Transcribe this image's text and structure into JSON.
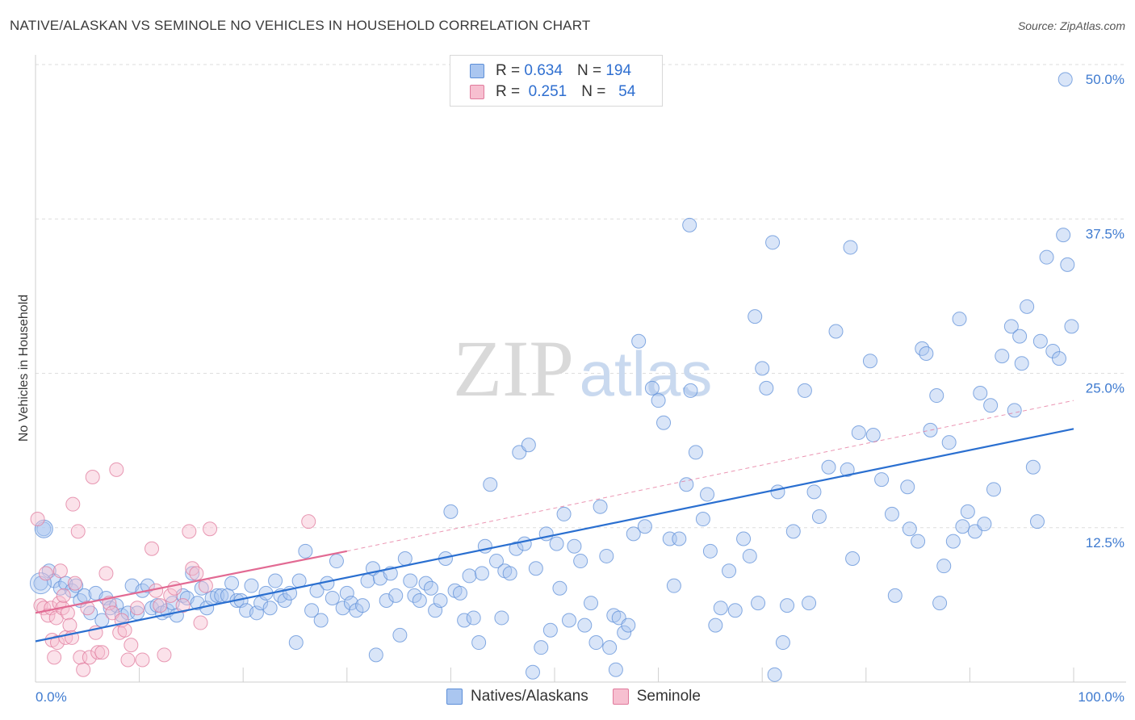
{
  "title": "NATIVE/ALASKAN VS SEMINOLE NO VEHICLES IN HOUSEHOLD CORRELATION CHART",
  "source": "Source: ZipAtlas.com",
  "watermark": {
    "zip": "ZIP",
    "atlas": "atlas"
  },
  "legend": {
    "rows": [
      {
        "r_label": "R =",
        "r_value": "0.634",
        "n_label": "N =",
        "n_value": "194",
        "color": "#aac6f0",
        "border": "#5d8fd8"
      },
      {
        "r_label": "R =",
        "r_value": "0.251",
        "n_label": "N =",
        "n_value": "54",
        "color": "#f7bfd0",
        "border": "#e07a9c"
      }
    ]
  },
  "bottom_legend": {
    "items": [
      {
        "label": "Natives/Alaskans",
        "color": "#aac6f0",
        "border": "#5d8fd8"
      },
      {
        "label": "Seminole",
        "color": "#f7bfd0",
        "border": "#e07a9c"
      }
    ]
  },
  "chart_data": {
    "type": "scatter",
    "title": "NATIVE/ALASKAN VS SEMINOLE NO VEHICLES IN HOUSEHOLD CORRELATION CHART",
    "xlabel": "",
    "ylabel": "No Vehicles in Household",
    "xlim": [
      0,
      100
    ],
    "ylim": [
      0,
      50
    ],
    "x_tick_labels": [
      "0.0%",
      "100.0%"
    ],
    "y_tick_labels": [
      "12.5%",
      "25.0%",
      "37.5%",
      "50.0%"
    ],
    "y_ticks": [
      12.5,
      25.0,
      37.5,
      50.0
    ],
    "grid": true,
    "legend_position": "top-center",
    "colors": {
      "natives": "#5d8fd8",
      "natives_fill": "#aac6f0",
      "seminole": "#e07a9c",
      "seminole_fill": "#f7bfd0",
      "natives_line": "#2a6fd0",
      "seminole_line": "#e26a93"
    },
    "series": [
      {
        "name": "Natives/Alaskans",
        "trend": {
          "x": [
            0,
            100
          ],
          "y": [
            3.3,
            20.5
          ]
        },
        "points": [
          [
            0.5,
            8.0
          ],
          [
            0.8,
            12.4
          ],
          [
            1.3,
            9.0
          ],
          [
            1.8,
            8.2
          ],
          [
            2.4,
            7.6
          ],
          [
            2.9,
            8.0
          ],
          [
            3.5,
            7.4
          ],
          [
            3.9,
            7.8
          ],
          [
            4.3,
            6.6
          ],
          [
            4.7,
            7.0
          ],
          [
            5.3,
            5.6
          ],
          [
            5.8,
            7.2
          ],
          [
            6.4,
            5.0
          ],
          [
            6.8,
            6.8
          ],
          [
            7.2,
            6.0
          ],
          [
            7.8,
            6.2
          ],
          [
            8.3,
            5.4
          ],
          [
            8.9,
            5.6
          ],
          [
            9.3,
            7.8
          ],
          [
            9.8,
            5.6
          ],
          [
            10.3,
            7.4
          ],
          [
            10.8,
            7.8
          ],
          [
            11.2,
            6.0
          ],
          [
            11.7,
            6.2
          ],
          [
            12.2,
            5.6
          ],
          [
            12.7,
            5.8
          ],
          [
            13.2,
            6.4
          ],
          [
            13.6,
            5.4
          ],
          [
            14.2,
            7.0
          ],
          [
            14.6,
            6.8
          ],
          [
            15.1,
            8.8
          ],
          [
            15.6,
            6.4
          ],
          [
            16.0,
            7.6
          ],
          [
            16.5,
            6.0
          ],
          [
            17.0,
            6.8
          ],
          [
            17.5,
            7.0
          ],
          [
            17.9,
            7.0
          ],
          [
            18.5,
            7.0
          ],
          [
            18.9,
            8.0
          ],
          [
            19.4,
            6.6
          ],
          [
            19.8,
            6.6
          ],
          [
            20.3,
            5.8
          ],
          [
            20.8,
            7.8
          ],
          [
            21.3,
            5.6
          ],
          [
            21.7,
            6.4
          ],
          [
            22.2,
            7.2
          ],
          [
            22.6,
            6.0
          ],
          [
            23.1,
            8.2
          ],
          [
            23.6,
            7.0
          ],
          [
            24.0,
            6.6
          ],
          [
            24.5,
            7.2
          ],
          [
            25.1,
            3.2
          ],
          [
            25.4,
            8.2
          ],
          [
            26.0,
            10.6
          ],
          [
            26.6,
            5.8
          ],
          [
            27.1,
            7.4
          ],
          [
            27.5,
            5.0
          ],
          [
            28.1,
            8.0
          ],
          [
            28.6,
            6.8
          ],
          [
            29.0,
            9.8
          ],
          [
            29.6,
            6.0
          ],
          [
            30.0,
            7.2
          ],
          [
            30.4,
            6.4
          ],
          [
            30.9,
            5.8
          ],
          [
            31.5,
            6.2
          ],
          [
            32.0,
            8.2
          ],
          [
            32.5,
            9.2
          ],
          [
            32.8,
            2.2
          ],
          [
            33.2,
            8.4
          ],
          [
            33.8,
            6.6
          ],
          [
            34.2,
            8.8
          ],
          [
            34.7,
            7.0
          ],
          [
            35.1,
            3.8
          ],
          [
            35.6,
            10.0
          ],
          [
            36.1,
            8.2
          ],
          [
            36.5,
            7.0
          ],
          [
            37.0,
            6.6
          ],
          [
            37.6,
            8.0
          ],
          [
            38.1,
            7.6
          ],
          [
            38.5,
            5.8
          ],
          [
            39.0,
            6.6
          ],
          [
            39.5,
            10.0
          ],
          [
            40.0,
            13.8
          ],
          [
            40.4,
            7.4
          ],
          [
            40.9,
            7.2
          ],
          [
            41.3,
            5.0
          ],
          [
            41.8,
            8.6
          ],
          [
            42.2,
            5.2
          ],
          [
            42.7,
            3.2
          ],
          [
            43.0,
            8.8
          ],
          [
            43.3,
            11.0
          ],
          [
            43.8,
            16.0
          ],
          [
            44.4,
            9.8
          ],
          [
            44.9,
            5.2
          ],
          [
            45.2,
            9.0
          ],
          [
            45.7,
            8.8
          ],
          [
            46.3,
            10.8
          ],
          [
            46.6,
            18.6
          ],
          [
            47.1,
            11.2
          ],
          [
            47.5,
            19.2
          ],
          [
            47.9,
            0.8
          ],
          [
            48.2,
            9.2
          ],
          [
            48.7,
            2.8
          ],
          [
            49.2,
            12.0
          ],
          [
            49.6,
            4.2
          ],
          [
            50.2,
            11.2
          ],
          [
            50.5,
            7.6
          ],
          [
            50.9,
            13.6
          ],
          [
            51.4,
            5.0
          ],
          [
            51.9,
            11.0
          ],
          [
            52.5,
            9.8
          ],
          [
            52.9,
            4.6
          ],
          [
            53.5,
            6.4
          ],
          [
            54.0,
            3.2
          ],
          [
            54.4,
            14.2
          ],
          [
            55.0,
            10.2
          ],
          [
            55.3,
            2.8
          ],
          [
            55.7,
            5.4
          ],
          [
            56.2,
            5.2
          ],
          [
            56.7,
            4.0
          ],
          [
            57.1,
            4.6
          ],
          [
            57.6,
            12.0
          ],
          [
            58.1,
            27.6
          ],
          [
            58.7,
            12.6
          ],
          [
            59.4,
            23.8
          ],
          [
            60.0,
            22.8
          ],
          [
            60.5,
            21.0
          ],
          [
            61.1,
            11.6
          ],
          [
            61.5,
            7.8
          ],
          [
            62.0,
            11.6
          ],
          [
            62.7,
            16.0
          ],
          [
            63.1,
            23.6
          ],
          [
            63.6,
            18.6
          ],
          [
            64.3,
            13.2
          ],
          [
            64.7,
            15.2
          ],
          [
            65.0,
            10.6
          ],
          [
            65.5,
            4.6
          ],
          [
            66.0,
            6.0
          ],
          [
            66.8,
            9.0
          ],
          [
            67.4,
            5.8
          ],
          [
            68.2,
            11.6
          ],
          [
            68.8,
            10.2
          ],
          [
            69.3,
            29.6
          ],
          [
            69.6,
            6.4
          ],
          [
            70.0,
            25.4
          ],
          [
            70.4,
            23.8
          ],
          [
            71.5,
            15.4
          ],
          [
            72.4,
            6.2
          ],
          [
            73.0,
            12.2
          ],
          [
            74.1,
            23.6
          ],
          [
            74.5,
            6.4
          ],
          [
            75.0,
            15.4
          ],
          [
            75.5,
            13.4
          ],
          [
            76.4,
            17.4
          ],
          [
            77.1,
            28.4
          ],
          [
            78.2,
            17.2
          ],
          [
            78.7,
            10.0
          ],
          [
            79.3,
            20.2
          ],
          [
            80.4,
            26.0
          ],
          [
            80.7,
            20.0
          ],
          [
            81.5,
            16.4
          ],
          [
            82.5,
            13.6
          ],
          [
            82.8,
            7.0
          ],
          [
            84.0,
            15.8
          ],
          [
            84.2,
            12.4
          ],
          [
            85.0,
            11.4
          ],
          [
            85.4,
            27.0
          ],
          [
            86.2,
            20.4
          ],
          [
            86.8,
            23.2
          ],
          [
            87.1,
            6.4
          ],
          [
            87.5,
            9.4
          ],
          [
            88.0,
            19.4
          ],
          [
            88.4,
            11.4
          ],
          [
            89.3,
            12.6
          ],
          [
            89.8,
            13.8
          ],
          [
            90.5,
            12.2
          ],
          [
            91.0,
            23.4
          ],
          [
            91.4,
            12.8
          ],
          [
            92.0,
            22.4
          ],
          [
            92.3,
            15.6
          ],
          [
            93.1,
            26.4
          ],
          [
            94.0,
            28.8
          ],
          [
            94.3,
            22.0
          ],
          [
            94.8,
            28.0
          ],
          [
            95.5,
            30.4
          ],
          [
            96.1,
            17.4
          ],
          [
            96.8,
            27.6
          ],
          [
            97.4,
            34.4
          ],
          [
            98.0,
            26.8
          ],
          [
            98.6,
            26.2
          ],
          [
            99.0,
            36.2
          ],
          [
            99.4,
            33.8
          ],
          [
            99.8,
            28.8
          ],
          [
            99.2,
            48.8
          ],
          [
            71.0,
            35.6
          ],
          [
            63.0,
            37.0
          ],
          [
            78.5,
            35.2
          ],
          [
            95.0,
            25.8
          ],
          [
            85.8,
            26.6
          ],
          [
            89.0,
            29.4
          ],
          [
            72.0,
            3.2
          ],
          [
            55.9,
            1.0
          ],
          [
            96.5,
            13.0
          ],
          [
            71.2,
            0.6
          ]
        ]
      },
      {
        "name": "Seminole",
        "trend": {
          "x": [
            0,
            30
          ],
          "y": [
            5.6,
            10.6
          ]
        },
        "trend_extended": {
          "x": [
            30,
            100
          ],
          "y": [
            10.6,
            22.8
          ]
        },
        "points": [
          [
            0.2,
            13.2
          ],
          [
            0.5,
            6.2
          ],
          [
            0.8,
            6.0
          ],
          [
            1.0,
            8.8
          ],
          [
            1.2,
            5.4
          ],
          [
            1.5,
            6.0
          ],
          [
            1.6,
            3.4
          ],
          [
            1.8,
            2.0
          ],
          [
            2.0,
            5.2
          ],
          [
            2.1,
            3.2
          ],
          [
            2.3,
            6.4
          ],
          [
            2.4,
            9.0
          ],
          [
            2.6,
            6.0
          ],
          [
            2.7,
            7.0
          ],
          [
            2.9,
            3.6
          ],
          [
            3.1,
            5.6
          ],
          [
            3.3,
            4.6
          ],
          [
            3.5,
            3.6
          ],
          [
            3.6,
            14.4
          ],
          [
            3.8,
            8.0
          ],
          [
            4.1,
            12.2
          ],
          [
            4.3,
            2.0
          ],
          [
            4.6,
            1.0
          ],
          [
            5.0,
            6.0
          ],
          [
            5.2,
            2.0
          ],
          [
            5.5,
            16.6
          ],
          [
            5.8,
            4.0
          ],
          [
            6.0,
            2.4
          ],
          [
            6.4,
            2.4
          ],
          [
            6.8,
            8.8
          ],
          [
            7.1,
            6.4
          ],
          [
            7.4,
            5.6
          ],
          [
            7.8,
            17.2
          ],
          [
            8.1,
            4.0
          ],
          [
            8.3,
            5.0
          ],
          [
            8.6,
            4.2
          ],
          [
            8.9,
            1.8
          ],
          [
            9.2,
            3.0
          ],
          [
            9.8,
            6.0
          ],
          [
            10.3,
            1.8
          ],
          [
            11.2,
            10.8
          ],
          [
            11.6,
            7.4
          ],
          [
            12.0,
            6.2
          ],
          [
            12.4,
            2.2
          ],
          [
            13.0,
            7.0
          ],
          [
            13.4,
            7.6
          ],
          [
            14.2,
            6.2
          ],
          [
            14.8,
            12.2
          ],
          [
            15.1,
            9.2
          ],
          [
            15.5,
            8.8
          ],
          [
            15.9,
            4.8
          ],
          [
            16.4,
            7.8
          ],
          [
            16.8,
            12.4
          ],
          [
            26.3,
            13.0
          ]
        ]
      }
    ]
  }
}
